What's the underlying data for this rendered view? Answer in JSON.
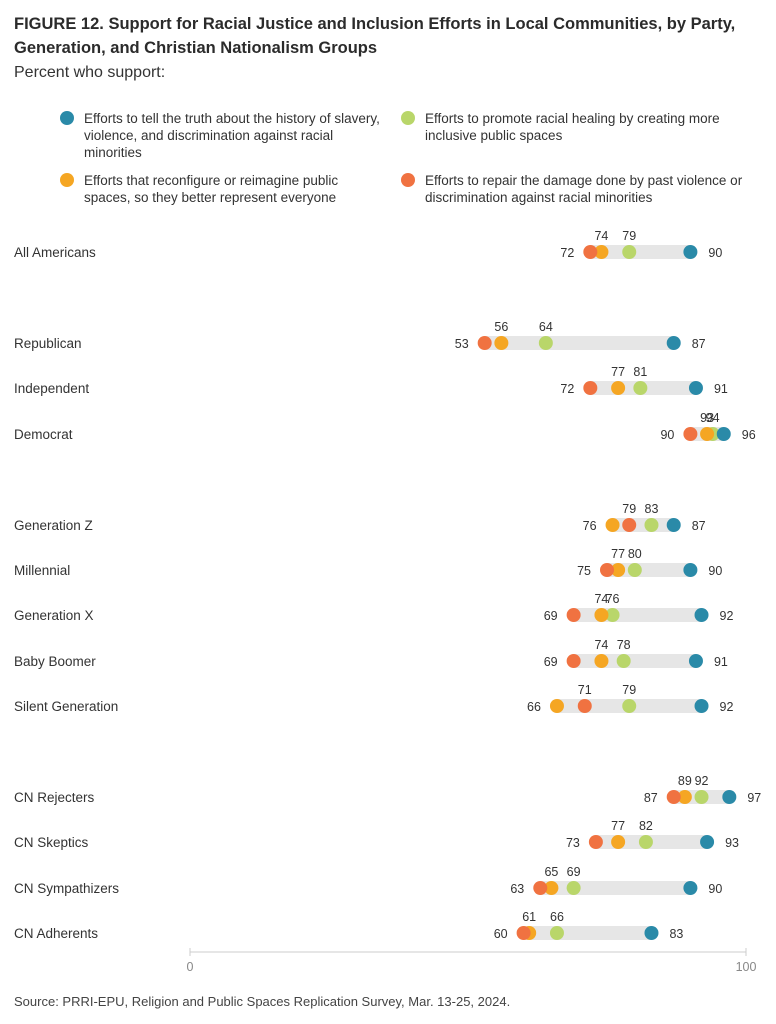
{
  "title": "FIGURE 12.  Support for Racial Justice and Inclusion Efforts in Local Communities, by Party, Generation, and Christian Nationalism Groups",
  "subtitle": "Percent who support:",
  "source": "Source: PRRI-EPU, Religion and Public Spaces Replication Survey, Mar. 13-25, 2024.",
  "colors": {
    "truth": "#2a8aa8",
    "healing": "#b9d66a",
    "reimagine": "#f5a623",
    "repair": "#f07241",
    "track": "#e6e6e6"
  },
  "chart_data": {
    "type": "scatter",
    "xlim": [
      0,
      100
    ],
    "x_ticks": [
      "0",
      "100"
    ],
    "series": [
      {
        "key": "truth",
        "name": "Efforts to tell the truth about the history of slavery, violence, and discrimination against racial minorities"
      },
      {
        "key": "healing",
        "name": "Efforts to promote racial healing by creating more inclusive public spaces"
      },
      {
        "key": "reimagine",
        "name": "Efforts that reconfigure or reimagine public spaces, so they better represent everyone"
      },
      {
        "key": "repair",
        "name": "Efforts to repair the damage done by past violence or discrimination against racial minorities"
      }
    ],
    "rows": [
      {
        "label": "All Americans",
        "truth": 90,
        "healing": 79,
        "reimagine": 74,
        "repair": 72
      },
      {
        "label": "Republican",
        "truth": 87,
        "healing": 64,
        "reimagine": 56,
        "repair": 53
      },
      {
        "label": "Independent",
        "truth": 91,
        "healing": 81,
        "reimagine": 77,
        "repair": 72
      },
      {
        "label": "Democrat",
        "truth": 96,
        "healing": 94,
        "reimagine": 93,
        "repair": 90
      },
      {
        "label": "Generation Z",
        "truth": 87,
        "healing": 83,
        "reimagine": 76,
        "repair": 79
      },
      {
        "label": "Millennial",
        "truth": 90,
        "healing": 80,
        "reimagine": 77,
        "repair": 75
      },
      {
        "label": "Generation X",
        "truth": 92,
        "healing": 76,
        "reimagine": 74,
        "repair": 69
      },
      {
        "label": "Baby Boomer",
        "truth": 91,
        "healing": 78,
        "reimagine": 74,
        "repair": 69
      },
      {
        "label": "Silent Generation",
        "truth": 92,
        "healing": 79,
        "reimagine": 66,
        "repair": 71
      },
      {
        "label": "CN Rejecters",
        "truth": 97,
        "healing": 92,
        "reimagine": 89,
        "repair": 87
      },
      {
        "label": "CN Skeptics",
        "truth": 93,
        "healing": 82,
        "reimagine": 77,
        "repair": 73
      },
      {
        "label": "CN Sympathizers",
        "truth": 90,
        "healing": 69,
        "reimagine": 65,
        "repair": 63
      },
      {
        "label": "CN Adherents",
        "truth": 83,
        "healing": 66,
        "reimagine": 61,
        "repair": 60
      }
    ]
  }
}
